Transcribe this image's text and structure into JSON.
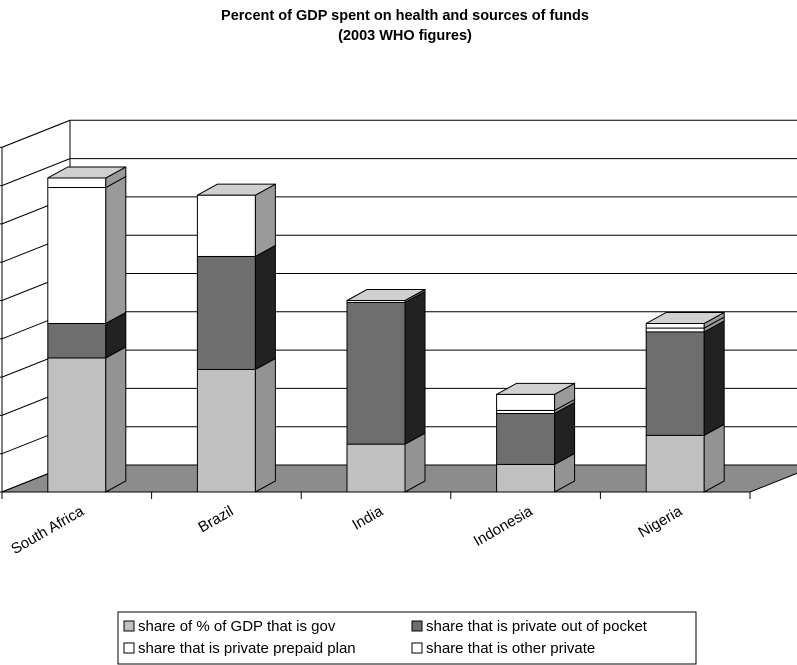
{
  "chart_data": {
    "type": "bar",
    "stacked": true,
    "three_d": true,
    "title": "Percent of GDP spent on health and sources of funds",
    "subtitle": "(2003 WHO figures)",
    "xlabel": "",
    "ylabel": "",
    "ylim": [
      0,
      9
    ],
    "yticks": [
      "0",
      "1",
      "2",
      "3",
      "4",
      "5",
      "6",
      "7",
      "8",
      "9"
    ],
    "grid": true,
    "legend_position": "bottom",
    "categories": [
      "South Africa",
      "Brazil",
      "India",
      "Indonesia",
      "Nigeria"
    ],
    "series": [
      {
        "name": "share of % of GDP that is gov",
        "color": "#c0c0c0",
        "side_color": "#939393",
        "values": [
          3.5,
          3.2,
          1.25,
          0.72,
          1.48
        ]
      },
      {
        "name": "share that is private out of pocket",
        "color": "#6e6e6e",
        "side_color": "#222222",
        "values": [
          0.9,
          2.95,
          3.7,
          1.33,
          2.7
        ]
      },
      {
        "name": "share that is private prepaid plan",
        "color": "#ffffff",
        "side_color": "#9a9a9a",
        "values": [
          3.55,
          1.6,
          0.05,
          0.08,
          0.1
        ]
      },
      {
        "name": "share that is other private",
        "color": "#ffffff",
        "side_color": "#9a9a9a",
        "values": [
          0.25,
          0.0,
          0.0,
          0.42,
          0.12
        ]
      }
    ],
    "floor_color": "#8c8c8c",
    "top_color": "#d0d0d0"
  }
}
